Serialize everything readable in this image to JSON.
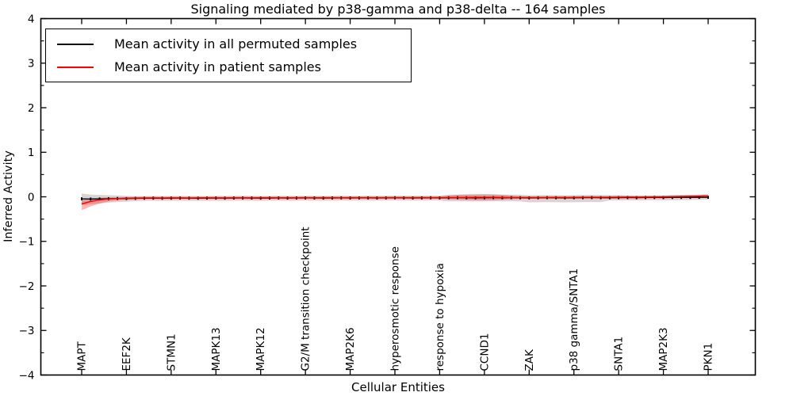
{
  "chart_data": {
    "type": "line",
    "title": "Signaling mediated by p38-gamma and p38-delta -- 164 samples",
    "xlabel": "Cellular Entities",
    "ylabel": "Inferred Activity",
    "ylim": [
      -4,
      4
    ],
    "yticks": [
      4,
      3,
      2,
      1,
      0,
      -1,
      -2,
      -3,
      -4
    ],
    "ytick_labels": [
      "4",
      "3",
      "2",
      "1",
      "0",
      "−1",
      "−2",
      "−3",
      "−4"
    ],
    "yminor_step": 0.5,
    "grid": false,
    "legend_position": "upper left",
    "n_points": 71,
    "x_label_every": 5,
    "x_tick_labels": [
      "MAPT",
      "EEF2K",
      "STMN1",
      "MAPK13",
      "MAPK12",
      "G2/M transition checkpoint",
      "MAP2K6",
      "hyperosmotic response",
      "response to hypoxia",
      "CCND1",
      "ZAK",
      "p38 gamma/SNTA1",
      "SNTA1",
      "MAP2K3",
      "PKN1"
    ],
    "series": [
      {
        "name": "Mean activity in all permuted samples",
        "color": "#000000",
        "marker": "vertical-dash",
        "band_color": "rgba(0,0,0,0.16)",
        "values": [
          -0.045,
          -0.05,
          -0.048,
          -0.042,
          -0.038,
          -0.04,
          -0.035,
          -0.032,
          -0.03,
          -0.032,
          -0.03,
          -0.028,
          -0.03,
          -0.032,
          -0.03,
          -0.028,
          -0.03,
          -0.028,
          -0.026,
          -0.028,
          -0.03,
          -0.028,
          -0.026,
          -0.028,
          -0.026,
          -0.025,
          -0.026,
          -0.028,
          -0.026,
          -0.024,
          -0.026,
          -0.025,
          -0.024,
          -0.026,
          -0.024,
          -0.022,
          -0.024,
          -0.026,
          -0.024,
          -0.022,
          -0.024,
          -0.022,
          -0.02,
          -0.022,
          -0.024,
          -0.022,
          -0.02,
          -0.022,
          -0.02,
          -0.022,
          -0.024,
          -0.022,
          -0.02,
          -0.022,
          -0.024,
          -0.022,
          -0.02,
          -0.018,
          -0.02,
          -0.022,
          -0.02,
          -0.018,
          -0.02,
          -0.018,
          -0.016,
          -0.018,
          -0.016,
          -0.014,
          -0.014,
          -0.012,
          -0.012
        ],
        "band_upper": [
          0.075,
          0.05,
          0.042,
          0.038,
          0.032,
          0.02,
          0.015,
          0.018,
          0.02,
          0.018,
          0.02,
          0.022,
          0.02,
          0.018,
          0.02,
          0.022,
          0.02,
          0.022,
          0.024,
          0.022,
          0.02,
          0.022,
          0.024,
          0.022,
          0.024,
          0.025,
          0.024,
          0.022,
          0.024,
          0.026,
          0.024,
          0.025,
          0.026,
          0.024,
          0.026,
          0.028,
          0.026,
          0.024,
          0.026,
          0.028,
          0.026,
          0.048,
          0.05,
          0.048,
          0.046,
          0.048,
          0.05,
          0.048,
          0.05,
          0.048,
          0.036,
          0.038,
          0.04,
          0.038,
          0.036,
          0.038,
          0.04,
          0.042,
          0.04,
          0.038,
          0.04,
          0.032,
          0.03,
          0.032,
          0.034,
          0.032,
          0.034,
          0.036,
          0.034,
          0.032,
          0.03
        ],
        "band_lower": [
          -0.185,
          -0.17,
          -0.148,
          -0.132,
          -0.118,
          -0.11,
          -0.095,
          -0.092,
          -0.09,
          -0.092,
          -0.09,
          -0.088,
          -0.09,
          -0.092,
          -0.09,
          -0.088,
          -0.09,
          -0.088,
          -0.086,
          -0.088,
          -0.09,
          -0.088,
          -0.086,
          -0.088,
          -0.086,
          -0.085,
          -0.086,
          -0.088,
          -0.086,
          -0.084,
          -0.086,
          -0.085,
          -0.084,
          -0.086,
          -0.084,
          -0.082,
          -0.084,
          -0.086,
          -0.084,
          -0.082,
          -0.084,
          -0.102,
          -0.1,
          -0.102,
          -0.104,
          -0.102,
          -0.1,
          -0.102,
          -0.1,
          -0.102,
          -0.124,
          -0.122,
          -0.12,
          -0.122,
          -0.124,
          -0.122,
          -0.12,
          -0.118,
          -0.12,
          -0.082,
          -0.08,
          -0.078,
          -0.08,
          -0.078,
          -0.076,
          -0.078,
          -0.076,
          -0.074,
          -0.07,
          -0.066,
          -0.062
        ]
      },
      {
        "name": "Mean activity in patient samples",
        "color": "#ff0000",
        "marker": "none",
        "band_color": "rgba(255,0,0,0.28)",
        "values": [
          -0.16,
          -0.105,
          -0.07,
          -0.05,
          -0.04,
          -0.032,
          -0.028,
          -0.026,
          -0.025,
          -0.026,
          -0.024,
          -0.025,
          -0.026,
          -0.024,
          -0.022,
          -0.024,
          -0.025,
          -0.023,
          -0.022,
          -0.024,
          -0.022,
          -0.021,
          -0.022,
          -0.023,
          -0.022,
          -0.02,
          -0.022,
          -0.021,
          -0.02,
          -0.022,
          -0.02,
          -0.019,
          -0.02,
          -0.021,
          -0.02,
          -0.018,
          -0.02,
          -0.019,
          -0.018,
          -0.02,
          -0.018,
          -0.016,
          -0.015,
          -0.014,
          -0.012,
          -0.01,
          -0.012,
          -0.014,
          -0.015,
          -0.016,
          -0.015,
          -0.016,
          -0.015,
          -0.014,
          -0.015,
          -0.014,
          -0.012,
          -0.01,
          -0.012,
          -0.01,
          -0.008,
          -0.006,
          -0.008,
          -0.006,
          -0.004,
          -0.002,
          0.004,
          0.008,
          0.012,
          0.016,
          0.02
        ],
        "band_upper": [
          -0.05,
          -0.03,
          -0.02,
          -0.012,
          -0.008,
          -0.005,
          0.0,
          0.002,
          0.003,
          0.002,
          0.004,
          0.003,
          0.002,
          0.004,
          0.006,
          0.004,
          0.003,
          0.005,
          0.006,
          0.004,
          0.006,
          0.007,
          0.006,
          0.005,
          0.006,
          0.008,
          0.006,
          0.007,
          0.008,
          0.006,
          0.008,
          0.009,
          0.008,
          0.007,
          0.008,
          0.01,
          0.008,
          0.009,
          0.01,
          0.008,
          0.01,
          0.03,
          0.045,
          0.055,
          0.06,
          0.062,
          0.058,
          0.045,
          0.03,
          0.015,
          0.012,
          0.012,
          0.013,
          0.014,
          0.013,
          0.014,
          0.016,
          0.018,
          0.016,
          0.018,
          0.02,
          0.022,
          0.02,
          0.022,
          0.024,
          0.026,
          0.03,
          0.035,
          0.042,
          0.05,
          0.056
        ],
        "band_lower": [
          -0.3,
          -0.215,
          -0.15,
          -0.105,
          -0.08,
          -0.062,
          -0.055,
          -0.052,
          -0.05,
          -0.052,
          -0.05,
          -0.051,
          -0.052,
          -0.05,
          -0.048,
          -0.05,
          -0.051,
          -0.049,
          -0.048,
          -0.05,
          -0.048,
          -0.047,
          -0.048,
          -0.049,
          -0.048,
          -0.046,
          -0.048,
          -0.047,
          -0.046,
          -0.048,
          -0.046,
          -0.045,
          -0.046,
          -0.047,
          -0.046,
          -0.044,
          -0.046,
          -0.045,
          -0.044,
          -0.046,
          -0.044,
          -0.055,
          -0.065,
          -0.072,
          -0.078,
          -0.08,
          -0.075,
          -0.065,
          -0.055,
          -0.048,
          -0.044,
          -0.045,
          -0.044,
          -0.042,
          -0.044,
          -0.042,
          -0.04,
          -0.038,
          -0.04,
          -0.038,
          -0.036,
          -0.034,
          -0.036,
          -0.034,
          -0.032,
          -0.03,
          -0.026,
          -0.022,
          -0.018,
          -0.012,
          -0.008
        ]
      }
    ]
  }
}
